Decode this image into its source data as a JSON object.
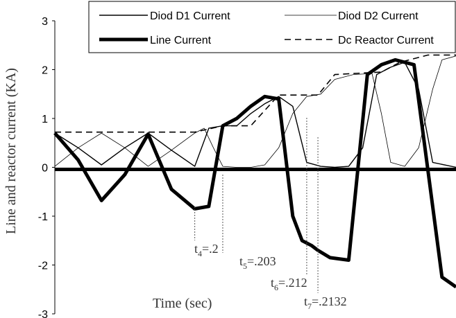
{
  "chart_data": {
    "type": "line",
    "xlabel": "Time (sec)",
    "ylabel": "Line and reactor current (KA)",
    "ylim": [
      -3,
      3
    ],
    "yticks": [
      "3",
      "2",
      "1",
      "0",
      "-1",
      "-2",
      "-3"
    ],
    "legend": {
      "placement": "top",
      "entries": [
        {
          "name": "Diod D1 Current",
          "style": "thick"
        },
        {
          "name": "Diod D2 Current",
          "style": "thin"
        },
        {
          "name": "Line Current",
          "style": "thicker"
        },
        {
          "name": "Dc Reactor Current",
          "style": "dashed"
        }
      ]
    },
    "annotations": [
      {
        "base": "t",
        "sub": "4",
        "value": "=.2",
        "t": 0.2
      },
      {
        "base": "t",
        "sub": "5",
        "value": "=.203",
        "t": 0.203
      },
      {
        "base": "t",
        "sub": "6",
        "value": "=.212",
        "t": 0.212
      },
      {
        "base": "t",
        "sub": "7",
        "value": "=.2132",
        "t": 0.2132
      }
    ],
    "series": [
      {
        "name": "Line Current",
        "x": [
          0.185,
          0.1875,
          0.19,
          0.1925,
          0.195,
          0.1975,
          0.2,
          0.2015,
          0.203,
          0.2045,
          0.206,
          0.2075,
          0.209,
          0.2105,
          0.2115,
          0.2125,
          0.2132,
          0.2145,
          0.2165,
          0.2185,
          0.22,
          0.2215,
          0.2235,
          0.2255,
          0.2265,
          0.228
        ],
        "values": [
          0.7,
          0.15,
          -0.68,
          -0.15,
          0.68,
          -0.45,
          -0.85,
          -0.8,
          0.85,
          1.0,
          1.25,
          1.45,
          1.4,
          -1.0,
          -1.5,
          -1.6,
          -1.7,
          -1.85,
          -1.9,
          1.9,
          2.1,
          2.2,
          2.1,
          -0.8,
          -2.25,
          -2.45
        ]
      },
      {
        "name": "Dc Reactor Current",
        "x": [
          0.185,
          0.2,
          0.203,
          0.206,
          0.209,
          0.211,
          0.2132,
          0.215,
          0.217,
          0.22,
          0.222,
          0.225,
          0.228
        ],
        "values": [
          0.72,
          0.72,
          0.85,
          0.85,
          1.48,
          1.48,
          1.48,
          1.9,
          1.92,
          1.95,
          2.15,
          2.3,
          2.3
        ]
      },
      {
        "name": "Diod D1 Current",
        "x": [
          0.185,
          0.1875,
          0.19,
          0.1925,
          0.195,
          0.1975,
          0.2,
          0.2015,
          0.203,
          0.2045,
          0.206,
          0.2075,
          0.209,
          0.2105,
          0.212,
          0.2135,
          0.215,
          0.2165,
          0.218,
          0.2195,
          0.221,
          0.2225,
          0.224,
          0.2255,
          0.228
        ],
        "values": [
          0.7,
          0.4,
          0.05,
          0.4,
          0.7,
          0.35,
          0.02,
          0.8,
          0.85,
          0.85,
          1.1,
          1.3,
          1.45,
          1.25,
          0.1,
          0.02,
          0.0,
          0.02,
          0.4,
          1.9,
          2.05,
          2.15,
          1.6,
          0.1,
          0.0
        ]
      },
      {
        "name": "Diod D2 Current",
        "x": [
          0.185,
          0.1875,
          0.19,
          0.1925,
          0.195,
          0.1975,
          0.2,
          0.201,
          0.202,
          0.203,
          0.2045,
          0.206,
          0.2075,
          0.209,
          0.2105,
          0.212,
          0.2135,
          0.215,
          0.217,
          0.219,
          0.22,
          0.221,
          0.2225,
          0.224,
          0.2255,
          0.2265,
          0.228
        ],
        "values": [
          0.02,
          0.4,
          0.7,
          0.4,
          0.02,
          0.35,
          0.7,
          0.8,
          0.4,
          0.02,
          0.0,
          0.0,
          0.05,
          0.4,
          1.1,
          1.45,
          1.5,
          1.8,
          1.9,
          1.92,
          1.1,
          0.1,
          0.02,
          0.4,
          1.6,
          2.2,
          2.28
        ]
      }
    ]
  }
}
